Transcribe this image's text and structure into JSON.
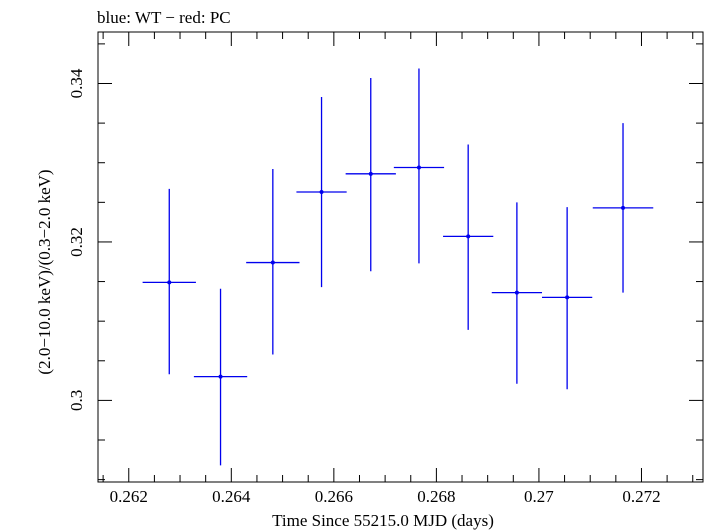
{
  "chart_data": {
    "type": "scatter",
    "title": "blue: WT − red: PC",
    "xlabel": "Time Since 55215.0 MJD (days)",
    "ylabel": "(2.0−10.0 keV)/(0.3−2.0 keV)",
    "xlim": [
      0.2614,
      0.2732
    ],
    "ylim": [
      0.2897,
      0.3465
    ],
    "x_ticks": [
      0.262,
      0.264,
      0.266,
      0.268,
      0.27,
      0.272
    ],
    "x_tick_labels": [
      "0.262",
      "0.264",
      "0.266",
      "0.268",
      "0.27",
      "0.272"
    ],
    "y_ticks": [
      0.3,
      0.32,
      0.34
    ],
    "y_tick_labels": [
      "0.3",
      "0.32",
      "0.34"
    ],
    "grid": false,
    "colors": {
      "WT": "#0000ee",
      "axes": "#000000"
    },
    "series": [
      {
        "name": "WT",
        "color": "#0000ee",
        "points": [
          {
            "x": 0.26279,
            "y": 0.3149,
            "xerr": 0.00052,
            "ylo": 0.3033,
            "yhi": 0.3267
          },
          {
            "x": 0.26379,
            "y": 0.303,
            "xerr": 0.00052,
            "ylo": 0.2918,
            "yhi": 0.3141
          },
          {
            "x": 0.26481,
            "y": 0.3174,
            "xerr": 0.00052,
            "ylo": 0.3058,
            "yhi": 0.3292
          },
          {
            "x": 0.26576,
            "y": 0.3263,
            "xerr": 0.00049,
            "ylo": 0.3143,
            "yhi": 0.3383
          },
          {
            "x": 0.26672,
            "y": 0.3286,
            "xerr": 0.00049,
            "ylo": 0.3163,
            "yhi": 0.3407
          },
          {
            "x": 0.26766,
            "y": 0.3294,
            "xerr": 0.00049,
            "ylo": 0.3173,
            "yhi": 0.3419
          },
          {
            "x": 0.26862,
            "y": 0.3207,
            "xerr": 0.00049,
            "ylo": 0.3089,
            "yhi": 0.3323
          },
          {
            "x": 0.26957,
            "y": 0.3136,
            "xerr": 0.00049,
            "ylo": 0.3021,
            "yhi": 0.325
          },
          {
            "x": 0.27055,
            "y": 0.313,
            "xerr": 0.00049,
            "ylo": 0.3014,
            "yhi": 0.3244
          },
          {
            "x": 0.27164,
            "y": 0.3243,
            "xerr": 0.00059,
            "ylo": 0.3136,
            "yhi": 0.335
          }
        ]
      }
    ]
  }
}
